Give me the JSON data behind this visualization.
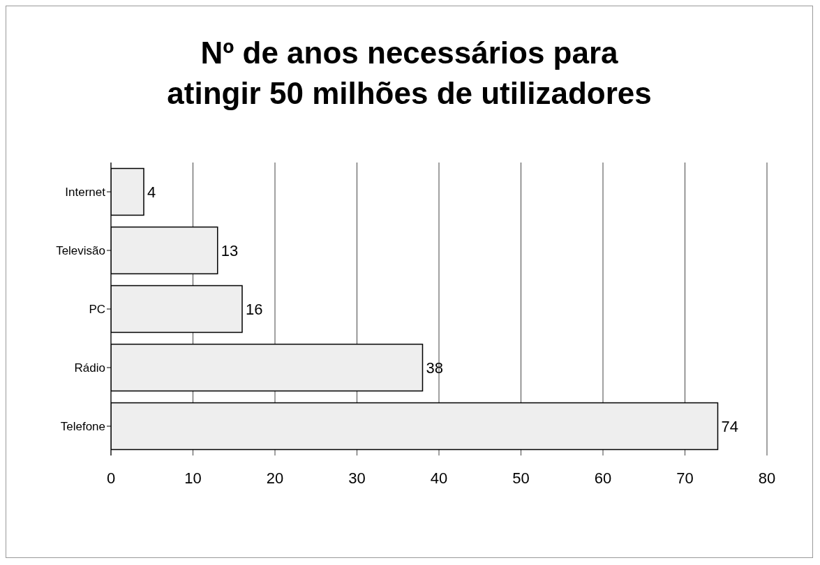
{
  "chart_data": {
    "type": "bar",
    "orientation": "horizontal",
    "title": "Nº de anos necessários para atingir 50 milhões de utilizadores",
    "categories": [
      "Internet",
      "Televisão",
      "PC",
      "Rádio",
      "Telefone"
    ],
    "values": [
      4,
      13,
      16,
      38,
      74
    ],
    "color": "#eeeeee",
    "xlim": [
      0,
      80
    ],
    "xticks": [
      0,
      10,
      20,
      30,
      40,
      50,
      60,
      70,
      80
    ],
    "grid": "x",
    "data_labels": true
  }
}
